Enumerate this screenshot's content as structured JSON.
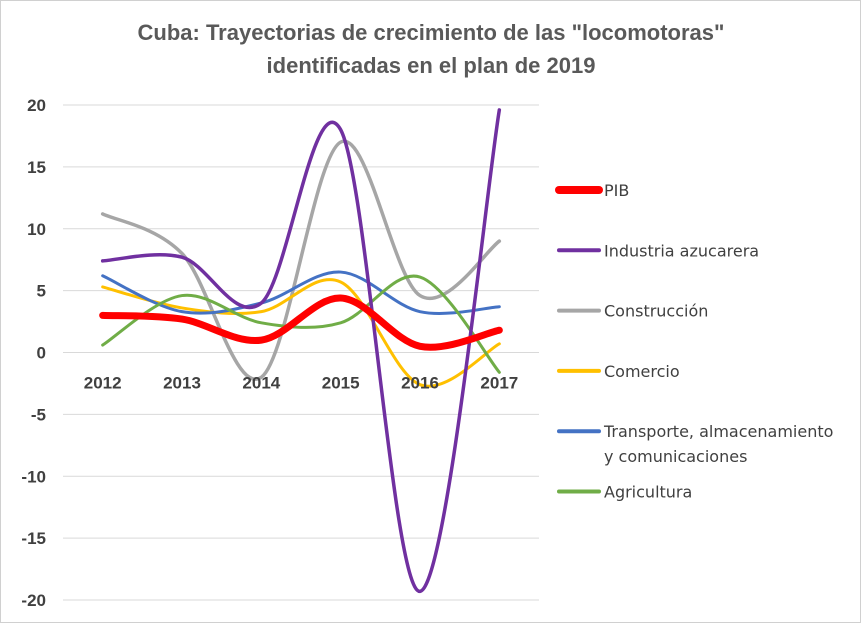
{
  "chart_data": {
    "type": "line",
    "title_lines": [
      "Cuba: Trayectorias de crecimiento de las \"locomotoras\"",
      "identificadas en el plan de  2019"
    ],
    "categories": [
      "2012",
      "2013",
      "2014",
      "2015",
      "2016",
      "2017"
    ],
    "y_ticks": [
      "20",
      "15",
      "10",
      "5",
      "0",
      "-5",
      "-10",
      "-15",
      "-20"
    ],
    "ylim": [
      -20,
      20
    ],
    "grid": true,
    "legend_position": "right",
    "series": [
      {
        "name": "PIB",
        "values": [
          3.0,
          2.7,
          1.0,
          4.4,
          0.5,
          1.8
        ],
        "color": "#ff0000",
        "width": 7
      },
      {
        "name": "Industria azucarera",
        "values": [
          7.4,
          7.7,
          4.0,
          18.0,
          -19.3,
          19.6
        ],
        "color": "#7030a0",
        "width": 3.5
      },
      {
        "name": "Construcción",
        "values": [
          11.2,
          8.0,
          -2.0,
          17.0,
          4.6,
          9.0
        ],
        "color": "#a6a6a6",
        "width": 3.5
      },
      {
        "name": "Comercio",
        "values": [
          5.3,
          3.6,
          3.3,
          5.7,
          -2.6,
          0.7
        ],
        "color": "#ffc000",
        "width": 3
      },
      {
        "name": "Transporte, almacenamiento y comunicaciones",
        "label_lines": [
          "Transporte, almacenamiento",
          "y comunicaciones"
        ],
        "values": [
          6.2,
          3.3,
          4.0,
          6.5,
          3.3,
          3.7
        ],
        "color": "#4472c4",
        "width": 3
      },
      {
        "name": "Agricultura",
        "values": [
          0.6,
          4.6,
          2.4,
          2.4,
          6.1,
          -1.6
        ],
        "color": "#70ad47",
        "width": 3
      }
    ]
  }
}
